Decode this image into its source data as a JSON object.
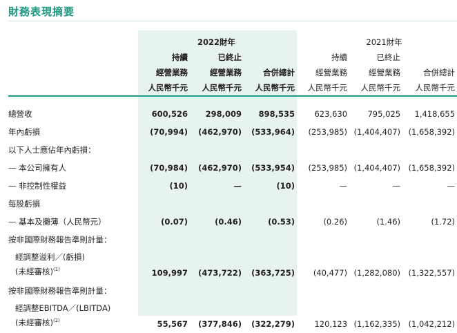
{
  "title": "財務表現摘要",
  "headers": {
    "year_2022": "2022財年",
    "year_2021": "2021財年",
    "row1": [
      "持續",
      "已終止",
      "",
      "持續",
      "已終止",
      ""
    ],
    "row2": [
      "經營業務",
      "經營業務",
      "合併總計",
      "經營業務",
      "經營業務",
      "合併總計"
    ],
    "row3": [
      "人民幣千元",
      "人民幣千元",
      "人民幣千元",
      "人民幣千元",
      "人民幣千元",
      "人民幣千元"
    ]
  },
  "rows": {
    "revenue": {
      "label": "總營收",
      "values": [
        "600,526",
        "298,009",
        "898,535",
        "623,630",
        "795,025",
        "1,418,655"
      ]
    },
    "loss": {
      "label": "年內虧損",
      "values": [
        "(70,994)",
        "(462,970)",
        "(533,964)",
        "(253,985)",
        "(1,404,407)",
        "(1,658,392)"
      ]
    },
    "attrib_header": {
      "label": "以下人士應佔年內虧損："
    },
    "owners": {
      "label": "— 本公司擁有人",
      "values": [
        "(70,984)",
        "(462,970)",
        "(533,954)",
        "(253,985)",
        "(1,404,407)",
        "(1,658,392)"
      ]
    },
    "nci": {
      "label": "— 非控制性權益",
      "values": [
        "(10)",
        "—",
        "(10)",
        "—",
        "—",
        "—"
      ]
    },
    "eps_header": {
      "label": "每股虧損"
    },
    "eps": {
      "label": "— 基本及攤薄（人民幣元）",
      "values": [
        "(0.07)",
        "(0.46)",
        "(0.53)",
        "(0.26)",
        "(1.46)",
        "(1.72)"
      ]
    },
    "nonifrs1_header": {
      "label": "按非國際財務報告準則計量："
    },
    "adj_profit": {
      "label_line1": "經調整溢利／(虧損)",
      "label_line2": "(未經審核)",
      "note": "(1)",
      "values": [
        "109,997",
        "(473,722)",
        "(363,725)",
        "(40,477)",
        "(1,282,080)",
        "(1,322,557)"
      ]
    },
    "nonifrs2_header": {
      "label": "按非國際財務報告準則計量："
    },
    "adj_ebitda": {
      "label_line1": "經調整EBITDA／(LBITDA)",
      "label_line2": "(未經審核)",
      "note": "(2)",
      "values": [
        "55,567",
        "(377,846)",
        "(322,279)",
        "120,123",
        "(1,162,335)",
        "(1,042,212)"
      ]
    }
  }
}
